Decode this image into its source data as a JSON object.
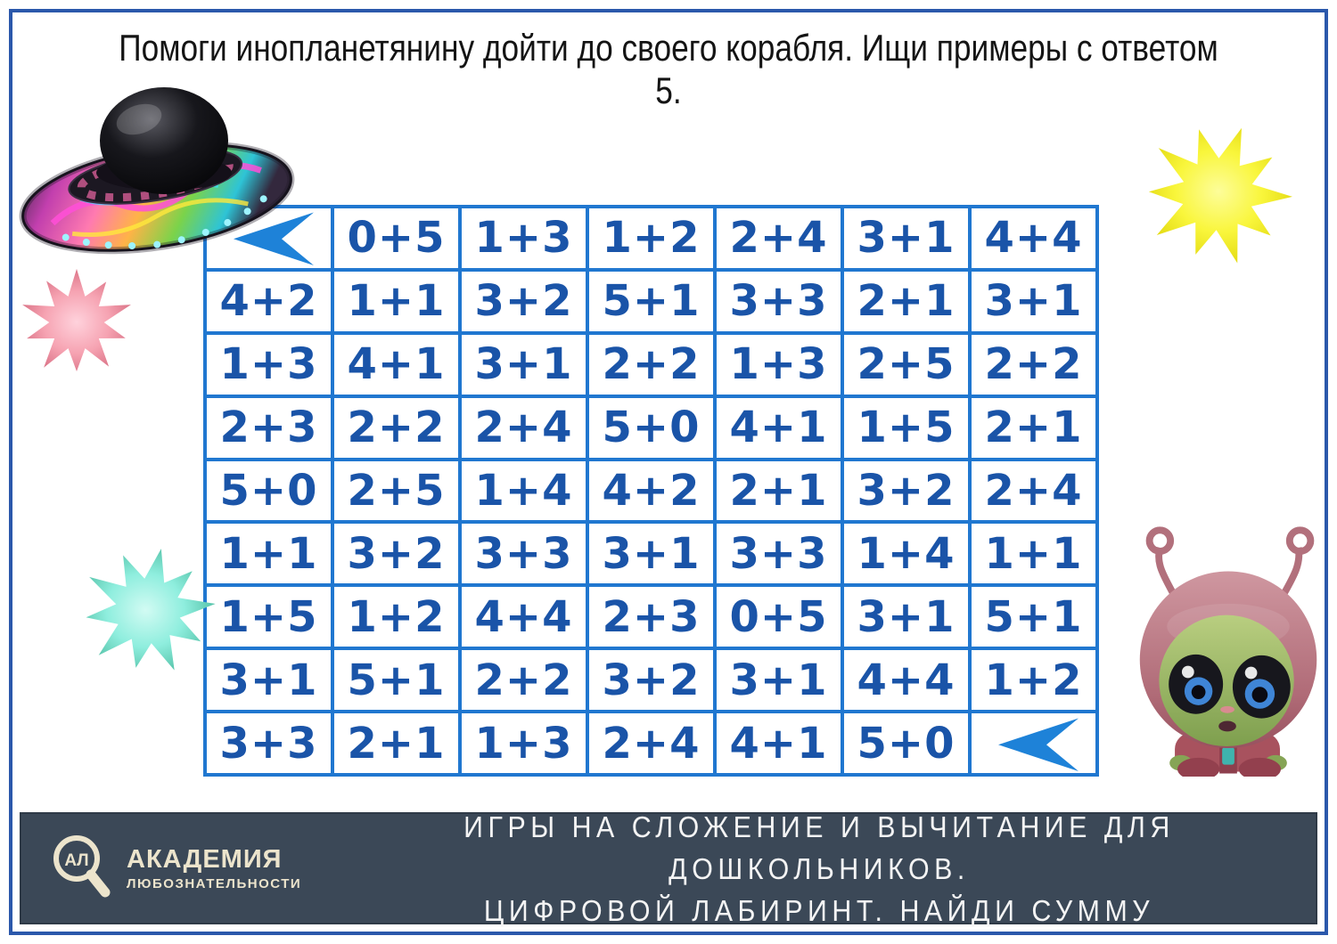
{
  "title": "Помоги инопланетянину дойти до своего корабля. Ищи примеры с ответом 5.",
  "maze": {
    "arrow_icon": "◀",
    "rows": [
      [
        "◀",
        "0+5",
        "1+3",
        "1+2",
        "2+4",
        "3+1",
        "4+4"
      ],
      [
        "4+2",
        "1+1",
        "3+2",
        "5+1",
        "3+3",
        "2+1",
        "3+1"
      ],
      [
        "1+3",
        "4+1",
        "3+1",
        "2+2",
        "1+3",
        "2+5",
        "2+2"
      ],
      [
        "2+3",
        "2+2",
        "2+4",
        "5+0",
        "4+1",
        "1+5",
        "2+1"
      ],
      [
        "5+0",
        "2+5",
        "1+4",
        "4+2",
        "2+1",
        "3+2",
        "2+4"
      ],
      [
        "1+1",
        "3+2",
        "3+3",
        "3+1",
        "3+3",
        "1+4",
        "1+1"
      ],
      [
        "1+5",
        "1+2",
        "4+4",
        "2+3",
        "0+5",
        "3+1",
        "5+1"
      ],
      [
        "3+1",
        "5+1",
        "2+2",
        "3+2",
        "3+1",
        "4+4",
        "1+2"
      ],
      [
        "3+3",
        "2+1",
        "1+3",
        "2+4",
        "4+1",
        "5+0",
        "◀"
      ]
    ]
  },
  "footer": {
    "line1": "ИГРЫ НА СЛОЖЕНИЕ И ВЫЧИТАНИЕ ДЛЯ ДОШКОЛЬНИКОВ.",
    "line2": "ЦИФРОВОЙ ЛАБИРИНТ. НАЙДИ СУММУ",
    "logo": {
      "abbr": "АЛ",
      "name": "АКАДЕМИЯ",
      "subtitle": "ЛЮБОЗНАТЕЛЬНОСТИ"
    }
  },
  "icons": {
    "maze_entry": "arrow-left-icon",
    "maze_exit": "arrow-left-icon",
    "logo_glyph": "magnifier-icon"
  },
  "colors": {
    "frame_border": "#2b58ab",
    "grid_line": "#2077d0",
    "cell_text": "#1a54a8",
    "arrow_blue": "#1e82d8",
    "footer_bg": "#3b4857",
    "footer_text": "#f4f4f4",
    "logo_cream": "#ece4cc",
    "star_yellow": "#f3ef0a",
    "star_pink": "#ee8a9b",
    "star_cyan": "#7feade"
  }
}
